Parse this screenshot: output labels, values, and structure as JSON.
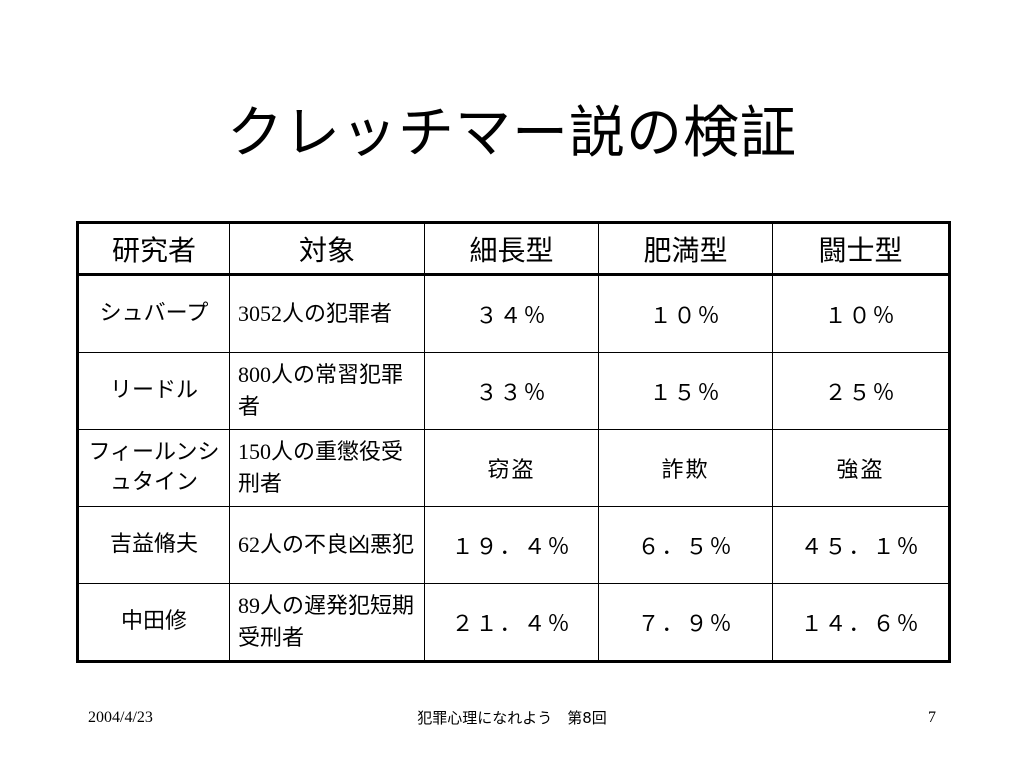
{
  "title": "クレッチマー説の検証",
  "table": {
    "headers": [
      "研究者",
      "対象",
      "細長型",
      "肥満型",
      "闘士型"
    ],
    "rows": [
      {
        "researcher": "シュバープ",
        "subject_num": "3052",
        "subject_text": "人の犯罪者",
        "values": [
          "３４％",
          "１０％",
          "１０％"
        ]
      },
      {
        "researcher": "リードル",
        "subject_num": "800",
        "subject_text": "人の常習犯罪者",
        "values": [
          "３３％",
          "１５％",
          "２５％"
        ]
      },
      {
        "researcher": "フィールンシュタイン",
        "subject_num": "150",
        "subject_text": "人の重懲役受刑者",
        "values": [
          "窃盗",
          "詐欺",
          "強盗"
        ]
      },
      {
        "researcher": "吉益脩夫",
        "subject_num": "62",
        "subject_text": "人の不良凶悪犯",
        "values": [
          "１９．４％",
          "６．５％",
          "４５．１％"
        ]
      },
      {
        "researcher": "中田修",
        "subject_num": "89",
        "subject_text": "人の遅発犯短期受刑者",
        "values": [
          "２１．４％",
          "７．９％",
          "１４．６％"
        ]
      }
    ]
  },
  "footer": {
    "date": "2004/4/23",
    "center": "犯罪心理になれよう　第8回",
    "page": "7"
  }
}
